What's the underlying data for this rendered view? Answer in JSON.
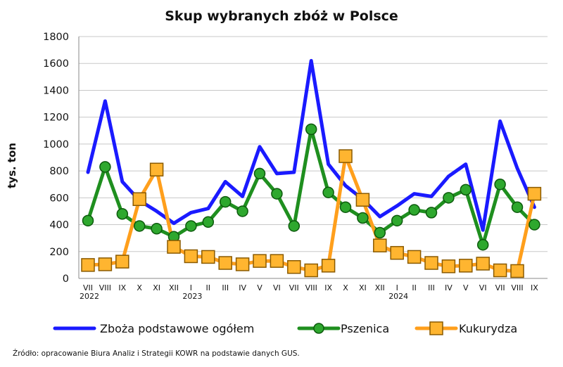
{
  "chart_data": {
    "type": "line",
    "title": "Skup wybranych zbóż w Polsce",
    "ylabel": "tys. ton",
    "xlabel": "",
    "ylim": [
      0,
      1800
    ],
    "yticks": [
      "0",
      "200",
      "400",
      "600",
      "800",
      "1000",
      "1200",
      "1400",
      "1600",
      "1800"
    ],
    "grid": true,
    "legend_position": "bottom",
    "categories": [
      "VII",
      "VIII",
      "IX",
      "X",
      "XI",
      "XII",
      "I",
      "II",
      "III",
      "IV",
      "V",
      "VI",
      "VII",
      "VIII",
      "IX",
      "X",
      "XI",
      "XII",
      "I",
      "II",
      "III",
      "IV",
      "V",
      "VI",
      "VII",
      "VIII",
      "IX"
    ],
    "year_labels": [
      {
        "index": 0,
        "label": "2022"
      },
      {
        "index": 6,
        "label": "2023"
      },
      {
        "index": 18,
        "label": "2024"
      }
    ],
    "series": [
      {
        "name": "Zboża podstawowe ogółem",
        "color": "#1a1aff",
        "marker": "none",
        "values": [
          790,
          1320,
          720,
          580,
          500,
          410,
          490,
          520,
          720,
          610,
          980,
          780,
          790,
          1620,
          850,
          690,
          590,
          460,
          540,
          630,
          610,
          760,
          850,
          360,
          1170,
          820,
          530
        ]
      },
      {
        "name": "Pszenica",
        "color": "#1f8f1f",
        "marker": "circle",
        "values": [
          430,
          830,
          480,
          390,
          370,
          310,
          390,
          420,
          570,
          500,
          780,
          630,
          390,
          1110,
          640,
          530,
          450,
          340,
          430,
          510,
          490,
          600,
          660,
          250,
          700,
          530,
          400
        ]
      },
      {
        "name": "Kukurydza",
        "color": "#ff9f1c",
        "marker": "square",
        "values": [
          100,
          105,
          125,
          590,
          810,
          235,
          165,
          160,
          115,
          105,
          130,
          130,
          85,
          60,
          95,
          910,
          585,
          245,
          190,
          160,
          115,
          90,
          95,
          110,
          60,
          55,
          630
        ]
      }
    ],
    "source": "Źródło: opracowanie Biura Analiz i Strategii  KOWR na podstawie danych GUS."
  }
}
